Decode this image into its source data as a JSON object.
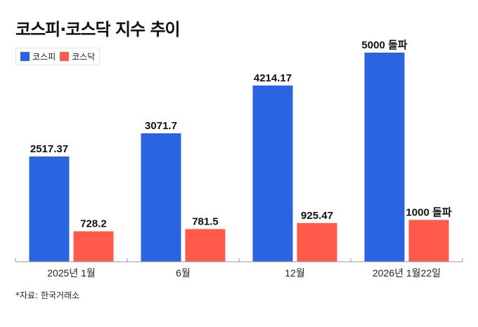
{
  "chart_data": {
    "type": "bar",
    "title": "코스피·코스닥 지수 추이",
    "categories": [
      "2025년 1월",
      "6월",
      "12월",
      "2026년 1월22일"
    ],
    "series": [
      {
        "name": "코스피",
        "color": "#2b64e0",
        "values": [
          2517.37,
          3071.7,
          4214.17,
          5000
        ],
        "labels": [
          "2517.37",
          "3071.7",
          "4214.17",
          "5000 돌파"
        ]
      },
      {
        "name": "코스닥",
        "color": "#ff5a4a",
        "values": [
          728.2,
          781.5,
          925.47,
          1000
        ],
        "labels": [
          "728.2",
          "781.5",
          "925.47",
          "1000 돌파"
        ]
      }
    ],
    "ylim": [
      0,
      5000
    ],
    "grid": false,
    "legend": "top-left",
    "source": "*자료: 한국거래소"
  }
}
